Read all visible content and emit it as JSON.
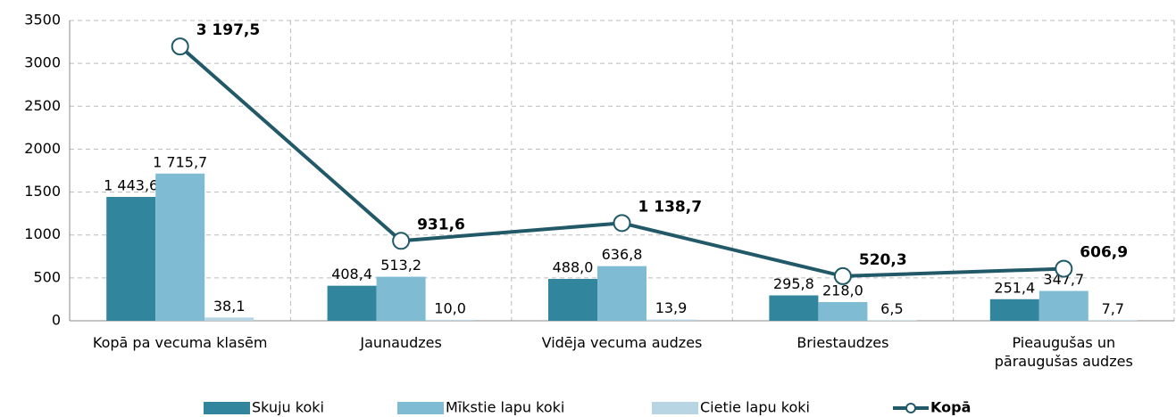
{
  "chart_data": {
    "type": "bar_line",
    "categories": [
      "Kopā pa vecuma klasēm",
      "Jaunaudzes",
      "Vidēja vecuma audzes",
      "Briestaudzes",
      "Pieaugušas un pāraugušas audzes"
    ],
    "series": [
      {
        "name": "Skuju koki",
        "type": "bar",
        "color": "#31859c",
        "values": [
          1443.6,
          408.4,
          488.0,
          295.8,
          251.4
        ],
        "value_labels": [
          "1 443,6",
          "408,4",
          "488,0",
          "295,8",
          "251,4"
        ]
      },
      {
        "name": "Mīkstie lapu koki",
        "type": "bar",
        "color": "#7fbcd3",
        "values": [
          1715.7,
          513.2,
          636.8,
          218.0,
          347.7
        ],
        "value_labels": [
          "1 715,7",
          "513,2",
          "636,8",
          "218,0",
          "347,7"
        ]
      },
      {
        "name": "Cietie lapu koki",
        "type": "bar",
        "color": "#b7d5e2",
        "values": [
          38.1,
          10.0,
          13.9,
          6.5,
          7.7
        ],
        "value_labels": [
          "38,1",
          "10,0",
          "13,9",
          "6,5",
          "7,7"
        ]
      },
      {
        "name": "Kopā",
        "type": "line",
        "color": "#215968",
        "values": [
          3197.5,
          931.6,
          1138.7,
          520.3,
          606.9
        ],
        "value_labels": [
          "3 197,5",
          "931,6",
          "1 138,7",
          "520,3",
          "606,9"
        ]
      }
    ],
    "ylim": [
      0,
      3500
    ],
    "yticks": [
      0,
      500,
      1000,
      1500,
      2000,
      2500,
      3000,
      3500
    ],
    "grid": true,
    "legend": "bottom"
  }
}
